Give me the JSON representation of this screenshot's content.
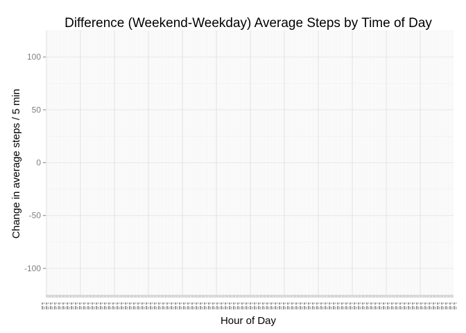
{
  "chart_data": {
    "type": "line",
    "title": "Difference (Weekend-Weekday) Average Steps by Time of Day",
    "xlabel": "Hour of Day",
    "ylabel": "Change in average steps / 5 min",
    "x_tick_count": 288,
    "y_ticks": [
      100,
      50,
      0,
      -50,
      -100
    ],
    "ylim": [
      -125,
      125
    ],
    "grid": true,
    "series": []
  }
}
